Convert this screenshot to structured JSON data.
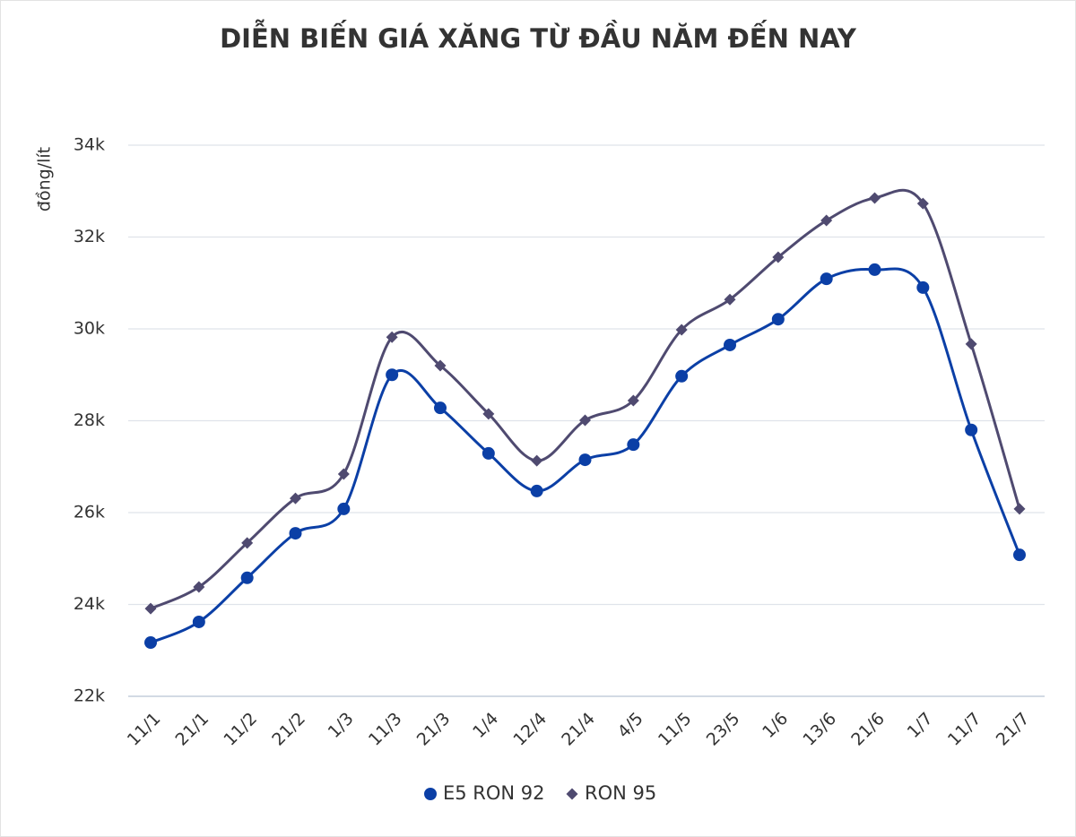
{
  "chart_data": {
    "type": "line",
    "title": "DIỄN BIẾN GIÁ XĂNG TỪ ĐẦU NĂM ĐẾN NAY",
    "y_label": "đồng/lít",
    "categories": [
      "11/1",
      "21/1",
      "11/2",
      "21/2",
      "1/3",
      "11/3",
      "21/3",
      "1/4",
      "12/4",
      "21/4",
      "4/5",
      "11/5",
      "23/5",
      "1/6",
      "13/6",
      "21/6",
      "1/7",
      "11/7",
      "21/7"
    ],
    "series": [
      {
        "name": "E5 RON 92",
        "color": "#0b3fa6",
        "marker": "circle",
        "values": [
          23170,
          23620,
          24580,
          25550,
          26080,
          29000,
          28280,
          27290,
          26470,
          27150,
          27480,
          28970,
          29650,
          30210,
          31090,
          31290,
          30900,
          27800,
          25080
        ]
      },
      {
        "name": "RON 95",
        "color": "#4f4a70",
        "marker": "diamond",
        "values": [
          23910,
          24380,
          25340,
          26310,
          26840,
          29820,
          29200,
          28150,
          27130,
          28010,
          28440,
          29980,
          30640,
          31560,
          32360,
          32850,
          32730,
          29670,
          26080
        ]
      }
    ],
    "ylim": [
      22000,
      34000
    ],
    "yticks": [
      {
        "value": 22000,
        "label": "22k"
      },
      {
        "value": 24000,
        "label": "24k"
      },
      {
        "value": 26000,
        "label": "26k"
      },
      {
        "value": 28000,
        "label": "28k"
      },
      {
        "value": 30000,
        "label": "30k"
      },
      {
        "value": 32000,
        "label": "32k"
      },
      {
        "value": 34000,
        "label": "34k"
      }
    ],
    "grid": true,
    "smooth": true,
    "legend": "bottom"
  }
}
